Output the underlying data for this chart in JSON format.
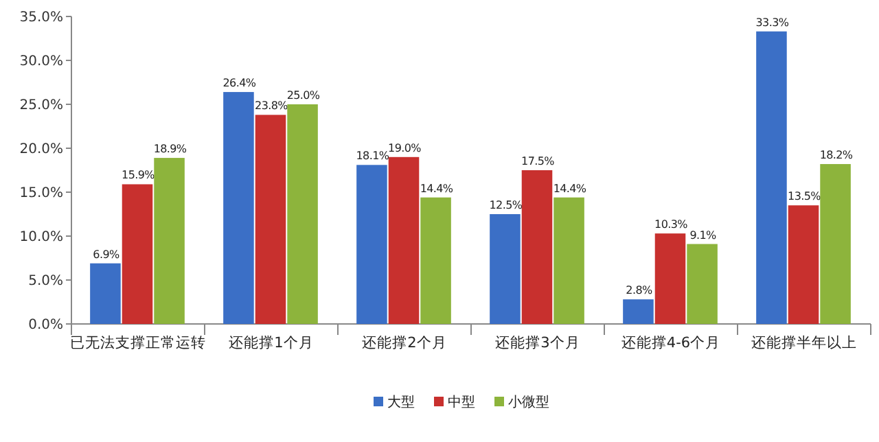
{
  "chart_data": {
    "type": "bar",
    "categories": [
      "已无法支撑正常运转",
      "还能撑1个月",
      "还能撑2个月",
      "还能撑3个月",
      "还能撑4-6个月",
      "还能撑半年以上"
    ],
    "series": [
      {
        "name": "大型",
        "color": "#3b6fc6",
        "values": [
          6.9,
          26.4,
          18.1,
          12.5,
          2.8,
          33.3
        ],
        "value_labels": [
          "6.9%",
          "26.4%",
          "18.1%",
          "12.5%",
          "2.8%",
          "33.3%"
        ]
      },
      {
        "name": "中型",
        "color": "#c8302e",
        "values": [
          15.9,
          23.8,
          19.0,
          17.5,
          10.3,
          13.5
        ],
        "value_labels": [
          "15.9%",
          "23.8%",
          "19.0%",
          "17.5%",
          "10.3%",
          "13.5%"
        ]
      },
      {
        "name": "小微型",
        "color": "#8db43c",
        "values": [
          18.9,
          25.0,
          14.4,
          14.4,
          9.1,
          18.2
        ],
        "value_labels": [
          "18.9%",
          "25.0%",
          "14.4%",
          "14.4%",
          "9.1%",
          "18.2%"
        ]
      }
    ],
    "ylim": [
      0,
      35
    ],
    "yticks": [
      {
        "value": 0,
        "label": "0.0%"
      },
      {
        "value": 5,
        "label": "5.0%"
      },
      {
        "value": 10,
        "label": "10.0%"
      },
      {
        "value": 15,
        "label": "15.0%"
      },
      {
        "value": 20,
        "label": "20.0%"
      },
      {
        "value": 25,
        "label": "25.0%"
      },
      {
        "value": 30,
        "label": "30.0%"
      },
      {
        "value": 35,
        "label": "35.0%"
      }
    ],
    "grid": false,
    "legend": "bottom"
  }
}
